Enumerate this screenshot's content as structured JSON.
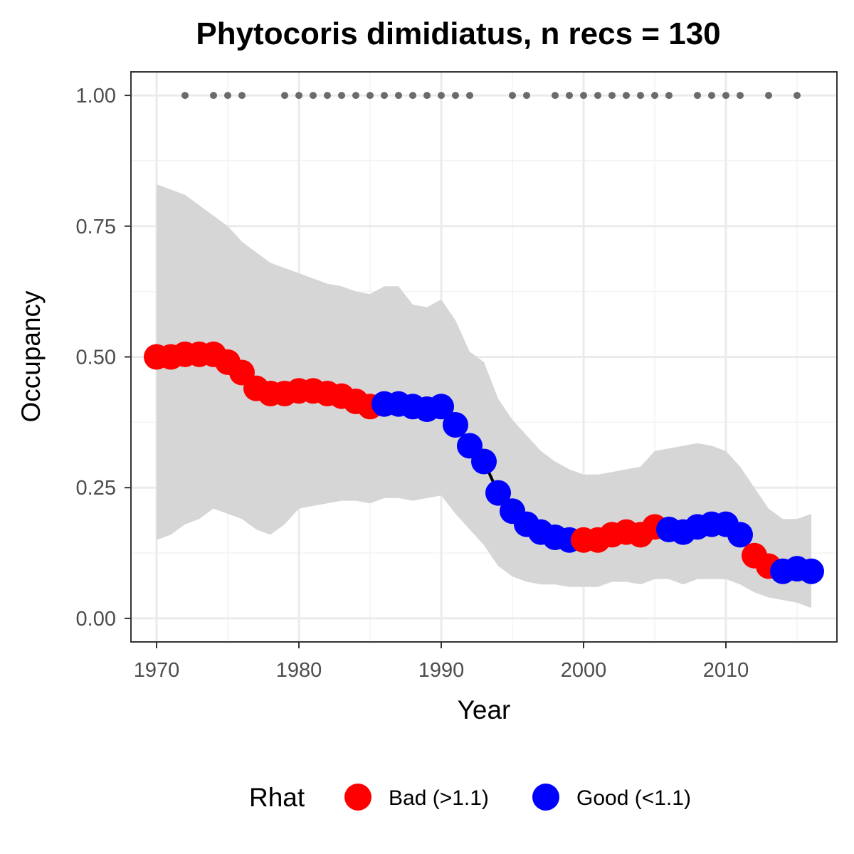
{
  "chart_data": {
    "type": "line",
    "title": "Phytocoris dimidiatus, n recs = 130",
    "xlabel": "Year",
    "ylabel": "Occupancy",
    "xlim": [
      1968.2,
      2017.8
    ],
    "ylim": [
      -0.045,
      1.045
    ],
    "x_ticks": [
      1970,
      1980,
      1990,
      2000,
      2010
    ],
    "x_tick_labels": [
      "1970",
      "1980",
      "1990",
      "2000",
      "2010"
    ],
    "y_ticks": [
      0,
      0.25,
      0.5,
      0.75,
      1
    ],
    "y_tick_labels": [
      "0.00",
      "0.25",
      "0.50",
      "0.75",
      "1.00"
    ],
    "grid": true,
    "legend": {
      "position": "bottom",
      "title": "Rhat",
      "entries": [
        {
          "key": "bad",
          "label": "Bad (>1.1)",
          "color": "#ff0000"
        },
        {
          "key": "good",
          "label": "Good (<1.1)",
          "color": "#0000ff"
        }
      ]
    },
    "series": [
      {
        "role": "occupancy",
        "x": [
          1970,
          1971,
          1972,
          1973,
          1974,
          1975,
          1976,
          1977,
          1978,
          1979,
          1980,
          1981,
          1982,
          1983,
          1984,
          1985,
          1986,
          1987,
          1988,
          1989,
          1990,
          1991,
          1992,
          1993,
          1994,
          1995,
          1996,
          1997,
          1998,
          1999,
          2000,
          2001,
          2002,
          2003,
          2004,
          2005,
          2006,
          2007,
          2008,
          2009,
          2010,
          2011,
          2012,
          2013,
          2014,
          2015,
          2016
        ],
        "y": [
          0.5,
          0.5,
          0.505,
          0.505,
          0.505,
          0.49,
          0.47,
          0.44,
          0.43,
          0.43,
          0.435,
          0.435,
          0.43,
          0.425,
          0.415,
          0.405,
          0.41,
          0.41,
          0.405,
          0.4,
          0.405,
          0.37,
          0.33,
          0.3,
          0.24,
          0.205,
          0.18,
          0.165,
          0.155,
          0.15,
          0.15,
          0.15,
          0.16,
          0.165,
          0.16,
          0.175,
          0.17,
          0.165,
          0.175,
          0.18,
          0.18,
          0.16,
          0.12,
          0.1,
          0.09,
          0.095,
          0.09
        ],
        "rhat": [
          "bad",
          "bad",
          "bad",
          "bad",
          "bad",
          "bad",
          "bad",
          "bad",
          "bad",
          "bad",
          "bad",
          "bad",
          "bad",
          "bad",
          "bad",
          "bad",
          "good",
          "good",
          "good",
          "good",
          "good",
          "good",
          "good",
          "good",
          "good",
          "good",
          "good",
          "good",
          "good",
          "good",
          "bad",
          "bad",
          "bad",
          "bad",
          "bad",
          "bad",
          "good",
          "good",
          "good",
          "good",
          "good",
          "good",
          "bad",
          "bad",
          "good",
          "good",
          "good"
        ]
      },
      {
        "role": "credible-interval",
        "x": [
          1970,
          1971,
          1972,
          1973,
          1974,
          1975,
          1976,
          1977,
          1978,
          1979,
          1980,
          1981,
          1982,
          1983,
          1984,
          1985,
          1986,
          1987,
          1988,
          1989,
          1990,
          1991,
          1992,
          1993,
          1994,
          1995,
          1996,
          1997,
          1998,
          1999,
          2000,
          2001,
          2002,
          2003,
          2004,
          2005,
          2006,
          2007,
          2008,
          2009,
          2010,
          2011,
          2012,
          2013,
          2014,
          2015,
          2016
        ],
        "lower": [
          0.15,
          0.16,
          0.18,
          0.19,
          0.21,
          0.2,
          0.19,
          0.17,
          0.16,
          0.18,
          0.21,
          0.215,
          0.22,
          0.225,
          0.225,
          0.22,
          0.23,
          0.23,
          0.225,
          0.23,
          0.235,
          0.2,
          0.17,
          0.14,
          0.1,
          0.08,
          0.07,
          0.065,
          0.065,
          0.06,
          0.06,
          0.06,
          0.07,
          0.07,
          0.065,
          0.075,
          0.075,
          0.065,
          0.075,
          0.075,
          0.075,
          0.065,
          0.05,
          0.04,
          0.035,
          0.03,
          0.02
        ],
        "upper": [
          0.83,
          0.82,
          0.81,
          0.79,
          0.77,
          0.75,
          0.72,
          0.7,
          0.68,
          0.67,
          0.66,
          0.65,
          0.64,
          0.635,
          0.625,
          0.62,
          0.635,
          0.635,
          0.6,
          0.595,
          0.61,
          0.57,
          0.51,
          0.49,
          0.42,
          0.38,
          0.35,
          0.32,
          0.3,
          0.285,
          0.275,
          0.275,
          0.28,
          0.285,
          0.29,
          0.32,
          0.325,
          0.33,
          0.335,
          0.33,
          0.32,
          0.29,
          0.25,
          0.21,
          0.19,
          0.19,
          0.2
        ]
      },
      {
        "role": "records",
        "x": [
          1972,
          1974,
          1975,
          1976,
          1979,
          1980,
          1981,
          1982,
          1983,
          1984,
          1985,
          1986,
          1987,
          1988,
          1989,
          1990,
          1991,
          1992,
          1995,
          1996,
          1998,
          1999,
          2000,
          2001,
          2002,
          2003,
          2004,
          2005,
          2006,
          2008,
          2009,
          2010,
          2011,
          2013,
          2015
        ],
        "y": [
          1,
          1,
          1,
          1,
          1,
          1,
          1,
          1,
          1,
          1,
          1,
          1,
          1,
          1,
          1,
          1,
          1,
          1,
          1,
          1,
          1,
          1,
          1,
          1,
          1,
          1,
          1,
          1,
          1,
          1,
          1,
          1,
          1,
          1,
          1
        ]
      }
    ]
  },
  "colors": {
    "bad": "#ff0000",
    "good": "#0000ff",
    "ribbon": "#d6d6d6",
    "records": "#6b6b6b",
    "line": "#000000",
    "panel_border": "#333333",
    "grid_major": "#ebebeb",
    "grid_minor": "#f3f3f3"
  }
}
